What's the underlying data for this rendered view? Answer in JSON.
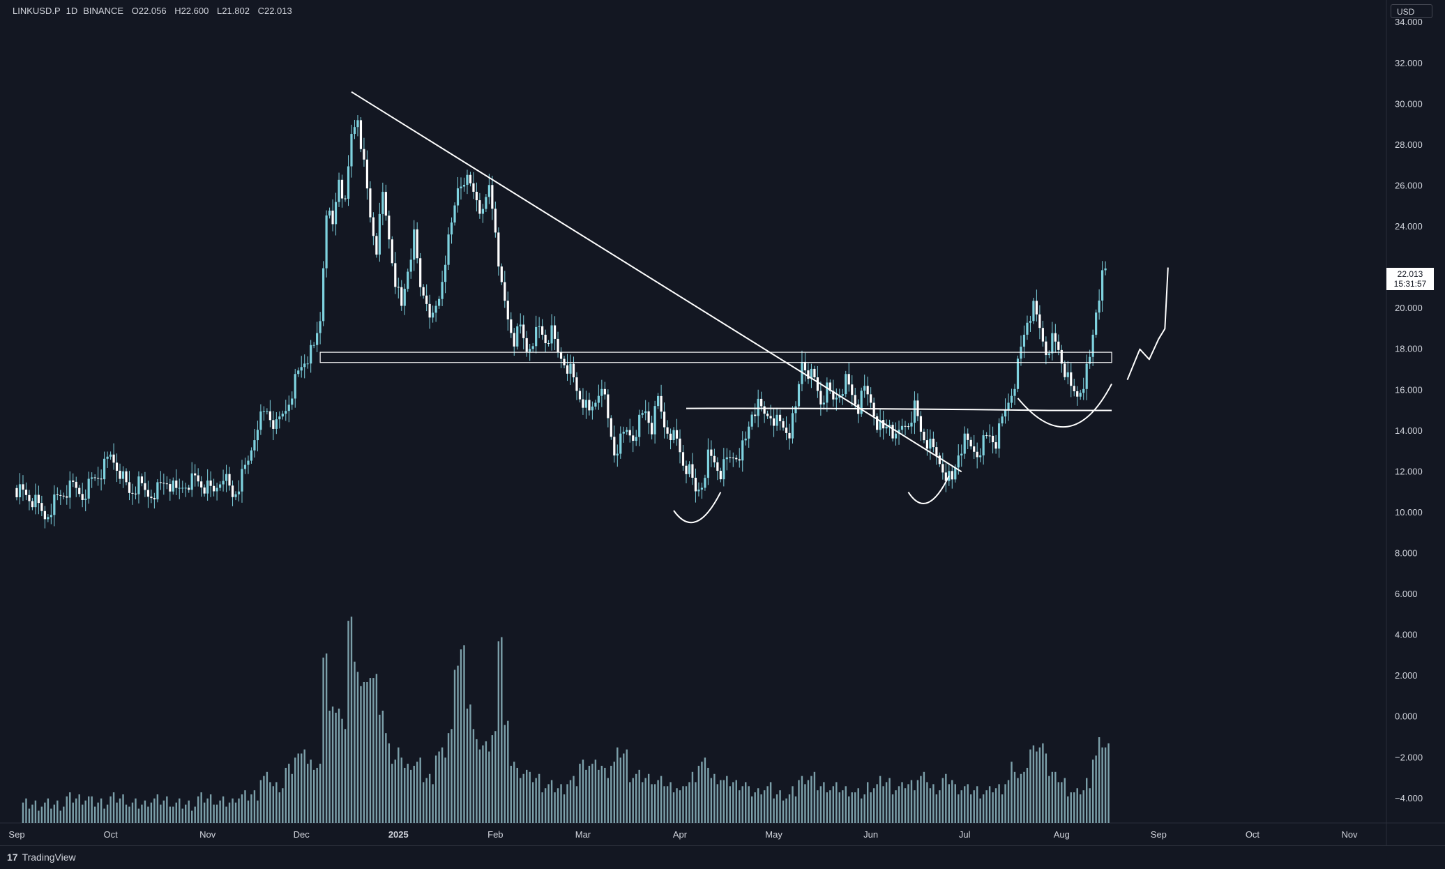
{
  "header": {
    "symbol": "LINKUSD.P",
    "interval": "1D",
    "exchange": "BINANCE",
    "open": "O22.056",
    "high": "H22.600",
    "low": "L21.802",
    "close": "C22.013"
  },
  "currency": "USD",
  "last_price": "22.013",
  "countdown": "15:31:57",
  "brand": "TradingView",
  "brand_logo": "17",
  "colors": {
    "background": "#131722",
    "candle": "#7fd3e0",
    "volume": "#8fb8c2",
    "drawing": "#ffffff",
    "axis_text": "#d1d4dc",
    "grid": "#2a2e39"
  },
  "chart_data": {
    "type": "candlestick",
    "y_axis": {
      "ticks": [
        "34.000",
        "32.000",
        "30.000",
        "28.000",
        "26.000",
        "24.000",
        "20.000",
        "18.000",
        "16.000",
        "14.000",
        "12.000",
        "10.000",
        "8.000",
        "6.000",
        "4.000",
        "2.000",
        "0.000",
        "−2.000",
        "−4.000"
      ],
      "tick_values": [
        34,
        32,
        30,
        28,
        26,
        24,
        20,
        18,
        16,
        14,
        12,
        10,
        8,
        6,
        4,
        2,
        0,
        -2,
        -4
      ],
      "range": [
        -5.2,
        35.1
      ]
    },
    "x_axis": {
      "labels": [
        "Sep",
        "Oct",
        "Nov",
        "Dec",
        "2025",
        "Feb",
        "Mar",
        "Apr",
        "May",
        "Jun",
        "Jul",
        "Aug",
        "Sep",
        "Oct",
        "Nov"
      ],
      "label_days": [
        0,
        30,
        61,
        91,
        122,
        153,
        181,
        212,
        242,
        273,
        303,
        334,
        365,
        395,
        426
      ]
    },
    "series": [
      {
        "type": "close_path",
        "points": [
          [
            0,
            11.2
          ],
          [
            3,
            10.9
          ],
          [
            6,
            10.5
          ],
          [
            9,
            9.8
          ],
          [
            12,
            10.6
          ],
          [
            15,
            11.0
          ],
          [
            18,
            11.3
          ],
          [
            21,
            10.9
          ],
          [
            24,
            11.6
          ],
          [
            27,
            12.0
          ],
          [
            30,
            12.8
          ],
          [
            33,
            12.1
          ],
          [
            36,
            11.0
          ],
          [
            39,
            11.4
          ],
          [
            42,
            10.9
          ],
          [
            45,
            11.2
          ],
          [
            48,
            11.6
          ],
          [
            51,
            11.0
          ],
          [
            54,
            11.5
          ],
          [
            57,
            11.7
          ],
          [
            60,
            11.3
          ],
          [
            63,
            11.0
          ],
          [
            66,
            12.0
          ],
          [
            69,
            10.8
          ],
          [
            71,
            11.4
          ],
          [
            74,
            12.5
          ],
          [
            77,
            14.5
          ],
          [
            80,
            15.0
          ],
          [
            83,
            14.2
          ],
          [
            86,
            15.1
          ],
          [
            89,
            16.5
          ],
          [
            92,
            17.5
          ],
          [
            95,
            18.0
          ],
          [
            97,
            19.5
          ],
          [
            99,
            25.0
          ],
          [
            101,
            24.0
          ],
          [
            103,
            26.5
          ],
          [
            105,
            25.0
          ],
          [
            107,
            28.5
          ],
          [
            109,
            29.5
          ],
          [
            111,
            27.0
          ],
          [
            113,
            24.5
          ],
          [
            115,
            23.0
          ],
          [
            117,
            25.5
          ],
          [
            119,
            23.5
          ],
          [
            121,
            21.5
          ],
          [
            123,
            20.0
          ],
          [
            125,
            22.0
          ],
          [
            127,
            23.5
          ],
          [
            129,
            21.0
          ],
          [
            131,
            20.5
          ],
          [
            133,
            19.5
          ],
          [
            135,
            20.5
          ],
          [
            137,
            22.5
          ],
          [
            139,
            24.0
          ],
          [
            141,
            26.0
          ],
          [
            143,
            26.5
          ],
          [
            145,
            26.0
          ],
          [
            147,
            25.5
          ],
          [
            149,
            24.5
          ],
          [
            151,
            26.0
          ],
          [
            153,
            24.0
          ],
          [
            155,
            21.0
          ],
          [
            157,
            19.5
          ],
          [
            159,
            18.5
          ],
          [
            161,
            19.0
          ],
          [
            163,
            18.0
          ],
          [
            165,
            18.6
          ],
          [
            167,
            19.0
          ],
          [
            169,
            18.5
          ],
          [
            171,
            18.8
          ],
          [
            173,
            17.8
          ],
          [
            175,
            17.5
          ],
          [
            177,
            17.0
          ],
          [
            179,
            16.0
          ],
          [
            181,
            15.5
          ],
          [
            183,
            14.8
          ],
          [
            185,
            15.5
          ],
          [
            187,
            16.5
          ],
          [
            189,
            14.5
          ],
          [
            191,
            13.0
          ],
          [
            193,
            13.5
          ],
          [
            195,
            14.0
          ],
          [
            197,
            13.8
          ],
          [
            199,
            14.5
          ],
          [
            201,
            15.0
          ],
          [
            203,
            14.2
          ],
          [
            205,
            15.5
          ],
          [
            207,
            14.3
          ],
          [
            209,
            14.0
          ],
          [
            211,
            13.5
          ],
          [
            213,
            12.5
          ],
          [
            215,
            12.0
          ],
          [
            217,
            11.0
          ],
          [
            219,
            11.5
          ],
          [
            221,
            12.8
          ],
          [
            223,
            12.5
          ],
          [
            225,
            12.0
          ],
          [
            227,
            12.5
          ],
          [
            229,
            12.8
          ],
          [
            231,
            13.0
          ],
          [
            233,
            13.5
          ],
          [
            235,
            15.0
          ],
          [
            237,
            15.2
          ],
          [
            239,
            14.8
          ],
          [
            241,
            14.9
          ],
          [
            243,
            14.5
          ],
          [
            245,
            14.2
          ],
          [
            247,
            14.0
          ],
          [
            249,
            15.0
          ],
          [
            251,
            17.5
          ],
          [
            253,
            17.0
          ],
          [
            255,
            16.5
          ],
          [
            257,
            15.5
          ],
          [
            259,
            16.0
          ],
          [
            261,
            15.5
          ],
          [
            263,
            16.0
          ],
          [
            265,
            16.5
          ],
          [
            267,
            15.8
          ],
          [
            269,
            15.2
          ],
          [
            271,
            16.0
          ],
          [
            273,
            15.5
          ],
          [
            275,
            14.5
          ],
          [
            277,
            14.0
          ],
          [
            279,
            14.5
          ],
          [
            281,
            13.5
          ],
          [
            283,
            14.2
          ],
          [
            285,
            14.5
          ],
          [
            287,
            15.2
          ],
          [
            289,
            14.0
          ],
          [
            291,
            13.5
          ],
          [
            293,
            13.0
          ],
          [
            295,
            12.5
          ],
          [
            297,
            12.0
          ],
          [
            299,
            11.5
          ],
          [
            301,
            13.0
          ],
          [
            303,
            13.5
          ],
          [
            305,
            13.2
          ],
          [
            307,
            13.0
          ],
          [
            309,
            13.5
          ],
          [
            311,
            13.8
          ],
          [
            313,
            13.5
          ],
          [
            315,
            14.5
          ],
          [
            317,
            15.5
          ],
          [
            319,
            16.5
          ],
          [
            321,
            18.0
          ],
          [
            323,
            19.5
          ],
          [
            325,
            20.0
          ],
          [
            327,
            19.0
          ],
          [
            329,
            18.0
          ],
          [
            331,
            18.5
          ],
          [
            333,
            18.0
          ],
          [
            335,
            17.0
          ],
          [
            337,
            16.0
          ],
          [
            339,
            15.8
          ],
          [
            341,
            16.5
          ],
          [
            343,
            17.5
          ],
          [
            345,
            20.0
          ],
          [
            347,
            21.5
          ],
          [
            349,
            22.0
          ]
        ]
      },
      {
        "type": "volume_bars",
        "points": [
          [
            2,
            -4.3
          ],
          [
            10,
            -4.3
          ],
          [
            16,
            -4.0
          ],
          [
            24,
            -4.2
          ],
          [
            30,
            -4.0
          ],
          [
            36,
            -4.3
          ],
          [
            42,
            -4.1
          ],
          [
            50,
            -4.3
          ],
          [
            58,
            -4.0
          ],
          [
            64,
            -4.2
          ],
          [
            70,
            -3.9
          ],
          [
            75,
            -3.8
          ],
          [
            78,
            -3.0
          ],
          [
            82,
            -3.4
          ],
          [
            86,
            -2.6
          ],
          [
            89,
            -2.0
          ],
          [
            91,
            -1.5
          ],
          [
            93,
            -2.4
          ],
          [
            96,
            -2.5
          ],
          [
            98,
            3.2
          ],
          [
            100,
            0.2
          ],
          [
            102,
            0.4
          ],
          [
            104,
            -0.3
          ],
          [
            106,
            4.8
          ],
          [
            108,
            2.4
          ],
          [
            110,
            1.5
          ],
          [
            112,
            2.0
          ],
          [
            114,
            1.8
          ],
          [
            116,
            0.3
          ],
          [
            118,
            -1.0
          ],
          [
            120,
            -2.2
          ],
          [
            122,
            -1.8
          ],
          [
            124,
            -2.5
          ],
          [
            126,
            -2.3
          ],
          [
            130,
            -3.0
          ],
          [
            134,
            -1.8
          ],
          [
            138,
            -0.8
          ],
          [
            140,
            2.6
          ],
          [
            142,
            3.2
          ],
          [
            144,
            0.6
          ],
          [
            146,
            -0.8
          ],
          [
            148,
            -1.5
          ],
          [
            152,
            -0.9
          ],
          [
            154,
            4.0
          ],
          [
            156,
            -0.5
          ],
          [
            158,
            -2.2
          ],
          [
            160,
            -2.7
          ],
          [
            164,
            -3.0
          ],
          [
            168,
            -3.4
          ],
          [
            172,
            -3.5
          ],
          [
            176,
            -3.2
          ],
          [
            180,
            -2.3
          ],
          [
            184,
            -2.4
          ],
          [
            188,
            -2.7
          ],
          [
            190,
            -2.3
          ],
          [
            192,
            -1.8
          ],
          [
            196,
            -2.9
          ],
          [
            200,
            -3.0
          ],
          [
            204,
            -3.2
          ],
          [
            208,
            -3.4
          ],
          [
            212,
            -3.7
          ],
          [
            214,
            -3.2
          ],
          [
            216,
            -2.9
          ],
          [
            218,
            -2.3
          ],
          [
            222,
            -3.0
          ],
          [
            226,
            -3.2
          ],
          [
            230,
            -3.3
          ],
          [
            234,
            -3.7
          ],
          [
            238,
            -3.5
          ],
          [
            242,
            -3.8
          ],
          [
            246,
            -3.9
          ],
          [
            248,
            -3.7
          ],
          [
            250,
            -3.1
          ],
          [
            252,
            -3.0
          ],
          [
            256,
            -3.4
          ],
          [
            260,
            -3.5
          ],
          [
            264,
            -3.6
          ],
          [
            268,
            -3.8
          ],
          [
            272,
            -3.4
          ],
          [
            276,
            -3.2
          ],
          [
            280,
            -3.5
          ],
          [
            284,
            -3.3
          ],
          [
            288,
            -3.0
          ],
          [
            292,
            -3.5
          ],
          [
            296,
            -3.1
          ],
          [
            300,
            -3.5
          ],
          [
            304,
            -3.6
          ],
          [
            308,
            -3.7
          ],
          [
            312,
            -3.5
          ],
          [
            316,
            -3.2
          ],
          [
            318,
            -2.5
          ],
          [
            320,
            -3.0
          ],
          [
            322,
            -2.4
          ],
          [
            324,
            -1.7
          ],
          [
            326,
            -1.5
          ],
          [
            328,
            -1.5
          ],
          [
            330,
            -2.8
          ],
          [
            332,
            -3.0
          ],
          [
            334,
            -3.2
          ],
          [
            336,
            -3.6
          ],
          [
            338,
            -3.8
          ],
          [
            340,
            -3.6
          ],
          [
            342,
            -3.2
          ],
          [
            344,
            -2.0
          ],
          [
            346,
            -1.3
          ],
          [
            348,
            -1.5
          ]
        ]
      }
    ],
    "annotations": {
      "trendline": [
        [
          107,
          30.6
        ],
        [
          302,
          12.0
        ]
      ],
      "resistance_zone": [
        17.35,
        17.85
      ],
      "support_line": [
        [
          214,
          15.1
        ],
        [
          330,
          15.0
        ]
      ],
      "rounded_bottoms": [
        {
          "from": [
            210,
            10.1
          ],
          "bottom": [
            217,
            9.6
          ],
          "to": [
            225,
            11.0
          ]
        },
        {
          "from": [
            285,
            11.0
          ],
          "bottom": [
            291,
            10.6
          ],
          "to": [
            298,
            11.8
          ]
        },
        {
          "from": [
            320,
            15.6
          ],
          "bottom": [
            337,
            13.5
          ],
          "to": [
            350,
            16.3
          ]
        }
      ],
      "projection_path": [
        [
          355,
          16.5
        ],
        [
          359,
          18.0
        ],
        [
          362,
          17.5
        ],
        [
          365,
          18.5
        ],
        [
          367,
          19.0
        ],
        [
          368,
          22.0
        ]
      ]
    }
  }
}
